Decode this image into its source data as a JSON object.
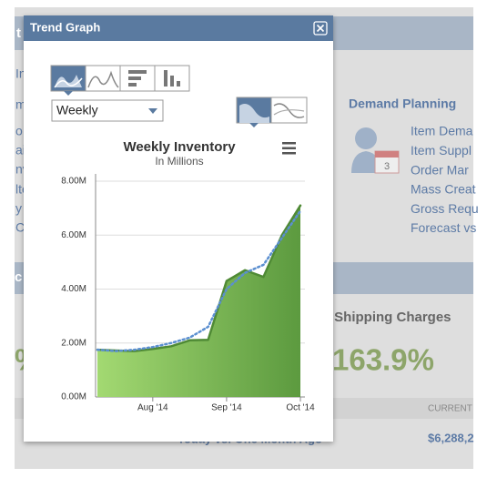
{
  "page": {
    "section_header_fragment": "t",
    "left_fragments": [
      "In",
      "m",
      "o",
      "ail",
      "nv",
      "lte",
      "y",
      "Ch"
    ],
    "demand_planning": {
      "title": "Demand Planning",
      "links": [
        "Item Dema",
        "Item Suppl",
        "Order Mar",
        "Mass Creat",
        "Gross Requ",
        "Forecast vs"
      ]
    },
    "section2_fragment": "c",
    "kpi": {
      "title_fragment": "f Shipping Charges",
      "value": "163.9%",
      "left_fragment": "%"
    },
    "table": {
      "header": "CURRENT",
      "row_label": "Today vs. One Month Ago",
      "row_value": "$6,288,2"
    }
  },
  "dialog": {
    "title": "Trend Graph",
    "period": "Weekly"
  },
  "chart_data": {
    "type": "area",
    "title": "Weekly Inventory",
    "subtitle": "In Millions",
    "categories": [
      null,
      null,
      null,
      "Aug '14",
      null,
      null,
      null,
      "Sep '14",
      null,
      null,
      null,
      "Oct '14"
    ],
    "series": [
      {
        "color": "#4f8a35",
        "values": [
          1.75,
          1.72,
          1.7,
          1.78,
          1.88,
          2.1,
          2.12,
          4.3,
          4.7,
          4.45,
          6.0,
          7.1
        ]
      },
      {
        "color": "#5b8fd0",
        "dashed": true,
        "values": [
          1.75,
          1.7,
          1.75,
          1.85,
          2.0,
          2.2,
          2.6,
          4.0,
          4.6,
          4.9,
          5.9,
          6.9
        ]
      }
    ],
    "ylim": [
      0,
      8
    ],
    "yticks": [
      {
        "value": 0,
        "label": "0.00M"
      },
      {
        "value": 2,
        "label": "2.00M"
      },
      {
        "value": 4,
        "label": "4.00M"
      },
      {
        "value": 6,
        "label": "6.00M"
      },
      {
        "value": 8,
        "label": "8.00M"
      }
    ],
    "grid": true
  }
}
